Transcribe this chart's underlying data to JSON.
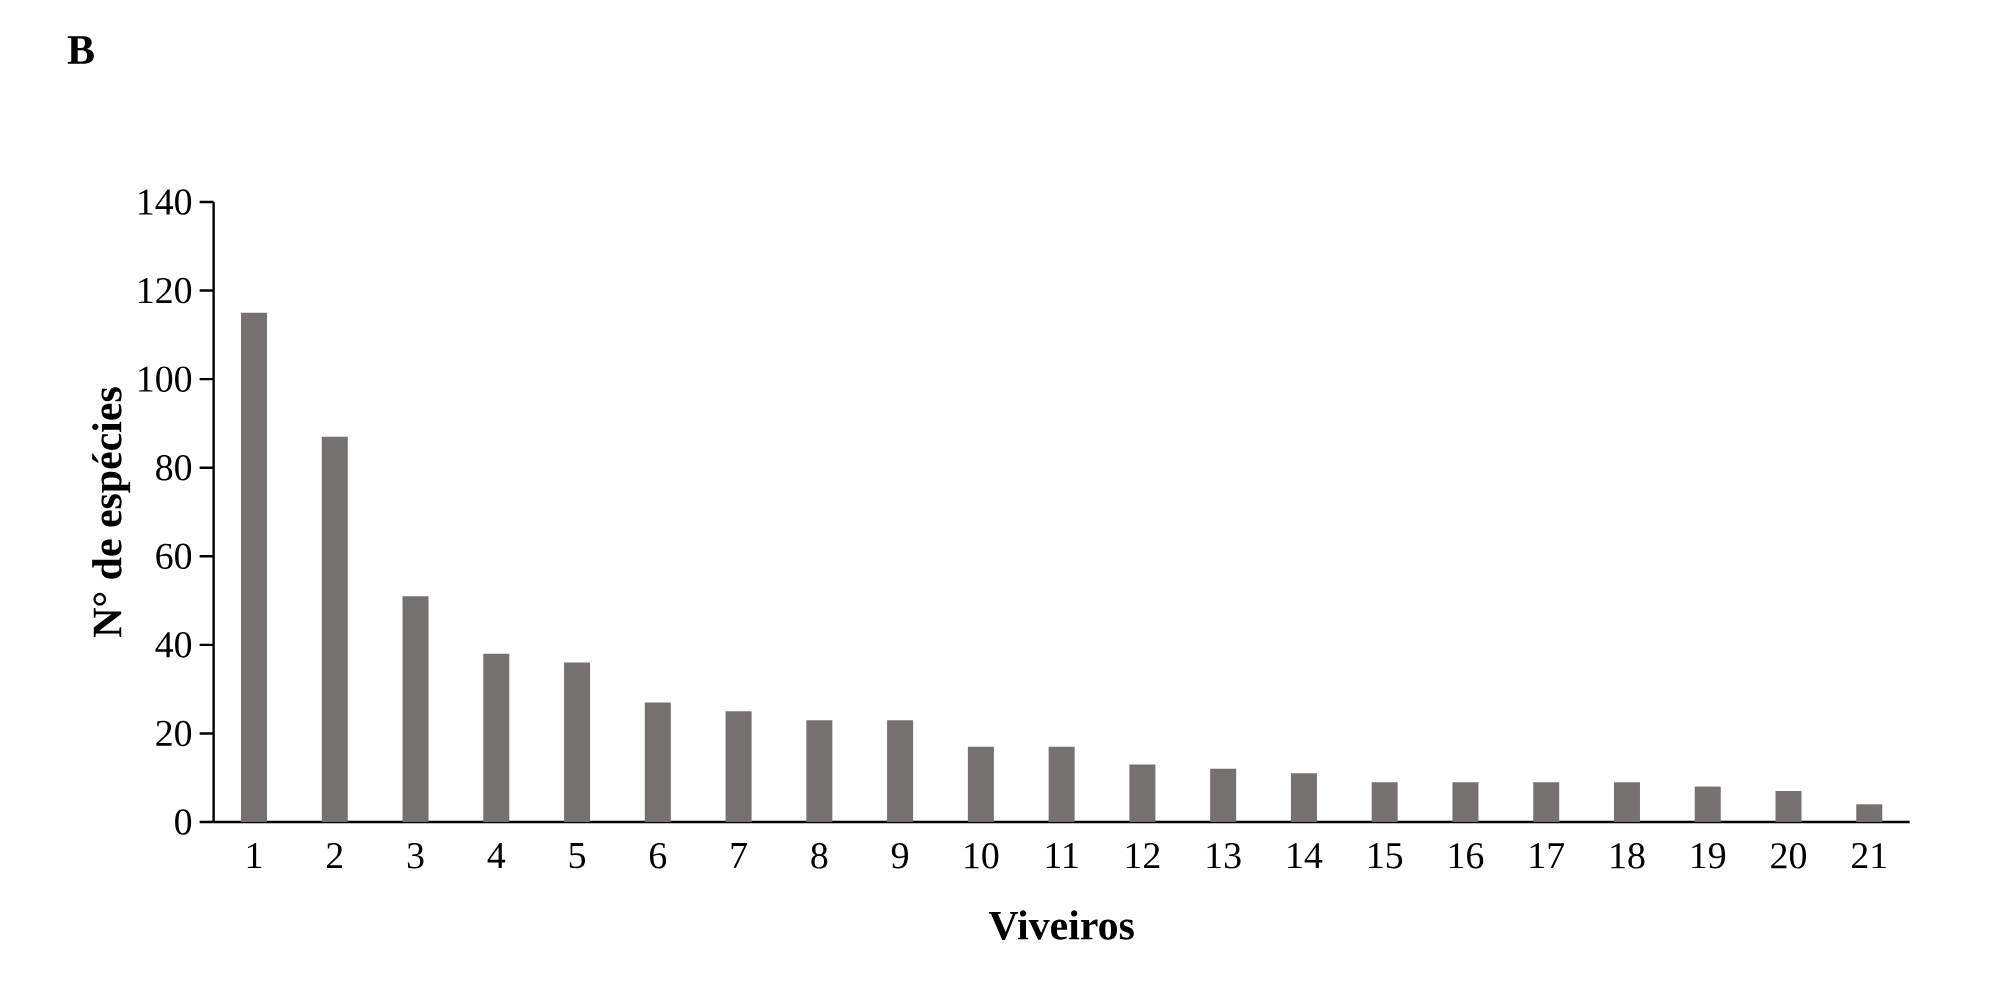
{
  "chart_data": {
    "type": "bar",
    "title": "B",
    "xlabel": "Viveiros",
    "ylabel": "N° de espécies",
    "categories": [
      "1",
      "2",
      "3",
      "4",
      "5",
      "6",
      "7",
      "8",
      "9",
      "10",
      "11",
      "12",
      "13",
      "14",
      "15",
      "16",
      "17",
      "18",
      "19",
      "20",
      "21"
    ],
    "values": [
      115,
      87,
      51,
      38,
      36,
      27,
      25,
      23,
      23,
      17,
      17,
      13,
      12,
      11,
      9,
      9,
      9,
      9,
      8,
      7,
      4
    ],
    "color": "#767171",
    "ylim": [
      0,
      140
    ],
    "yticks": [
      0,
      20,
      40,
      60,
      80,
      100,
      120,
      140
    ]
  }
}
